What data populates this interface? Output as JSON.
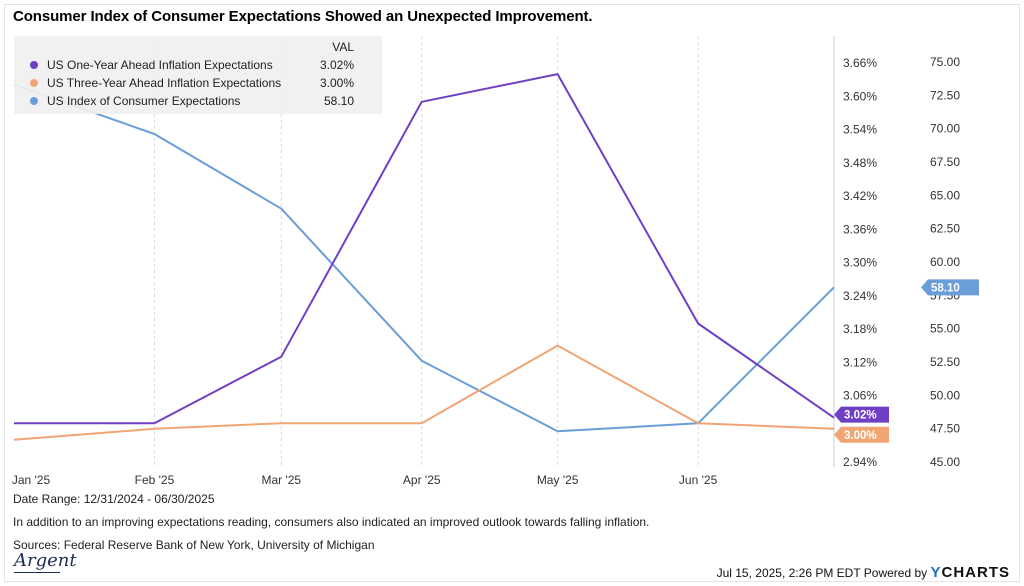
{
  "title": "Consumer Index of Consumer Expectations Showed an Unexpected Improvement.",
  "legend": {
    "header": "VAL",
    "items": [
      {
        "name": "US One-Year Ahead Inflation Expectations",
        "value": "3.02%",
        "color": "#6f3fc6"
      },
      {
        "name": "US Three-Year Ahead Inflation Expectations",
        "value": "3.00%",
        "color": "#f2a574"
      },
      {
        "name": "US Index of Consumer Expectations",
        "value": "58.10",
        "color": "#6a9ed8"
      }
    ]
  },
  "chart_data": {
    "type": "line",
    "x": [
      "Jan '25",
      "Feb '25",
      "Mar '25",
      "Apr '25",
      "May '25",
      "Jun '25"
    ],
    "y_left_ticks": [
      "3.66%",
      "3.60%",
      "3.54%",
      "3.48%",
      "3.42%",
      "3.36%",
      "3.30%",
      "3.24%",
      "3.18%",
      "3.12%",
      "3.06%",
      "2.94%"
    ],
    "y_right_ticks": [
      "75.00",
      "72.50",
      "70.00",
      "67.50",
      "65.00",
      "62.50",
      "60.00",
      "57.50",
      "55.00",
      "52.50",
      "50.00",
      "47.50",
      "45.00"
    ],
    "y_left_range": [
      2.94,
      3.68
    ],
    "y_right_range": [
      45.0,
      75.0
    ],
    "series": [
      {
        "name": "US One-Year Ahead Inflation Expectations",
        "axis": "left",
        "color": "#6f3fc6",
        "points": [
          [
            "2024-12-31",
            3.01
          ],
          [
            "2025-01-31",
            3.01
          ],
          [
            "2025-02-28",
            3.13
          ],
          [
            "2025-03-31",
            3.59
          ],
          [
            "2025-04-30",
            3.64
          ],
          [
            "2025-05-31",
            3.19
          ],
          [
            "2025-06-30",
            3.02
          ]
        ]
      },
      {
        "name": "US Three-Year Ahead Inflation Expectations",
        "axis": "left",
        "color": "#f2a574",
        "points": [
          [
            "2024-12-31",
            2.98
          ],
          [
            "2025-01-31",
            3.0
          ],
          [
            "2025-02-28",
            3.01
          ],
          [
            "2025-03-31",
            3.01
          ],
          [
            "2025-04-30",
            3.15
          ],
          [
            "2025-05-31",
            3.01
          ],
          [
            "2025-06-30",
            3.0
          ]
        ]
      },
      {
        "name": "US Index of Consumer Expectations",
        "axis": "right",
        "color": "#6a9ed8",
        "points": [
          [
            "2024-12-31",
            73.3
          ],
          [
            "2025-01-31",
            69.6
          ],
          [
            "2025-02-28",
            64.0
          ],
          [
            "2025-03-31",
            52.6
          ],
          [
            "2025-04-30",
            47.3
          ],
          [
            "2025-05-31",
            47.9
          ],
          [
            "2025-06-30",
            58.1
          ]
        ]
      }
    ],
    "end_labels": {
      "one_year": "3.02%",
      "three_year": "3.00%",
      "index": "58.10"
    },
    "grid": "vertical"
  },
  "footer": {
    "date_range": "Date Range: 12/31/2024 - 06/30/2025",
    "note": "In addition to an improving expectations reading, consumers also indicated an improved outlook towards falling inflation.",
    "sources": "Sources: Federal Reserve Bank of New York, University of Michigan",
    "timestamp": "Jul 15, 2025, 2:26 PM EDT Powered by",
    "brand_y": "Y",
    "brand_rest": "CHARTS",
    "logo": "Argent"
  }
}
